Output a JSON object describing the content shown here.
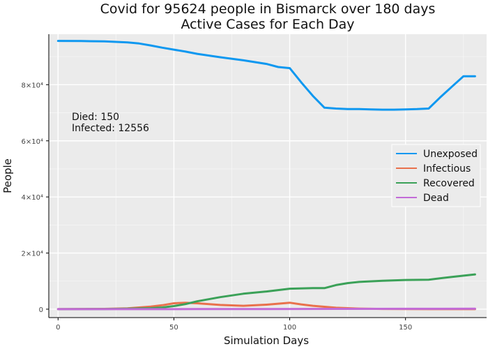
{
  "chart_data": {
    "type": "line",
    "title_lines": [
      "Covid for 95624 people in Bismarck over 180 days",
      "Active Cases for Each Day"
    ],
    "xlabel": "Simulation Days",
    "ylabel": "People",
    "xlim": [
      -4,
      185
    ],
    "ylim": [
      -3000,
      98000
    ],
    "x_ticks": [
      0,
      50,
      100,
      150
    ],
    "x_tick_labels": [
      "0",
      "50",
      "100",
      "150"
    ],
    "y_ticks": [
      0,
      20000,
      40000,
      60000,
      80000
    ],
    "y_tick_labels": [
      "0",
      "2×10⁴",
      "4×10⁴",
      "6×10⁴",
      "8×10⁴"
    ],
    "grid": true,
    "legend_position": "right",
    "annotations": [
      "Died: 150",
      "Infected: 12556"
    ],
    "series": [
      {
        "name": "Unexposed",
        "color": "#0f98f0",
        "x": [
          0,
          10,
          20,
          30,
          35,
          40,
          45,
          50,
          55,
          60,
          70,
          80,
          90,
          95,
          100,
          105,
          110,
          115,
          120,
          125,
          130,
          135,
          140,
          145,
          150,
          155,
          160,
          165,
          170,
          175,
          180
        ],
        "y": [
          95600,
          95550,
          95450,
          95100,
          94700,
          94000,
          93200,
          92500,
          91800,
          91000,
          89800,
          88700,
          87400,
          86300,
          85900,
          80800,
          76000,
          71800,
          71500,
          71300,
          71300,
          71200,
          71100,
          71100,
          71200,
          71300,
          71500,
          75500,
          79300,
          83000,
          83000
        ]
      },
      {
        "name": "Infectious",
        "color": "#e9714c",
        "x": [
          0,
          20,
          30,
          40,
          45,
          50,
          55,
          60,
          70,
          80,
          90,
          100,
          105,
          110,
          120,
          130,
          140,
          150,
          160,
          170,
          180
        ],
        "y": [
          0,
          100,
          300,
          900,
          1400,
          2100,
          2300,
          2100,
          1500,
          1200,
          1600,
          2300,
          1700,
          1200,
          500,
          200,
          80,
          40,
          20,
          10,
          10
        ]
      },
      {
        "name": "Recovered",
        "color": "#3ba158",
        "x": [
          0,
          20,
          30,
          40,
          45,
          50,
          55,
          60,
          70,
          80,
          90,
          100,
          110,
          115,
          120,
          125,
          130,
          140,
          150,
          160,
          170,
          180
        ],
        "y": [
          0,
          50,
          150,
          350,
          600,
          1100,
          1800,
          2800,
          4300,
          5500,
          6300,
          7300,
          7500,
          7500,
          8600,
          9300,
          9700,
          10100,
          10400,
          10500,
          11500,
          12400
        ]
      },
      {
        "name": "Dead",
        "color": "#c26bd7",
        "x": [
          0,
          30,
          60,
          90,
          120,
          150,
          180
        ],
        "y": [
          0,
          5,
          30,
          60,
          100,
          130,
          150
        ]
      }
    ]
  }
}
